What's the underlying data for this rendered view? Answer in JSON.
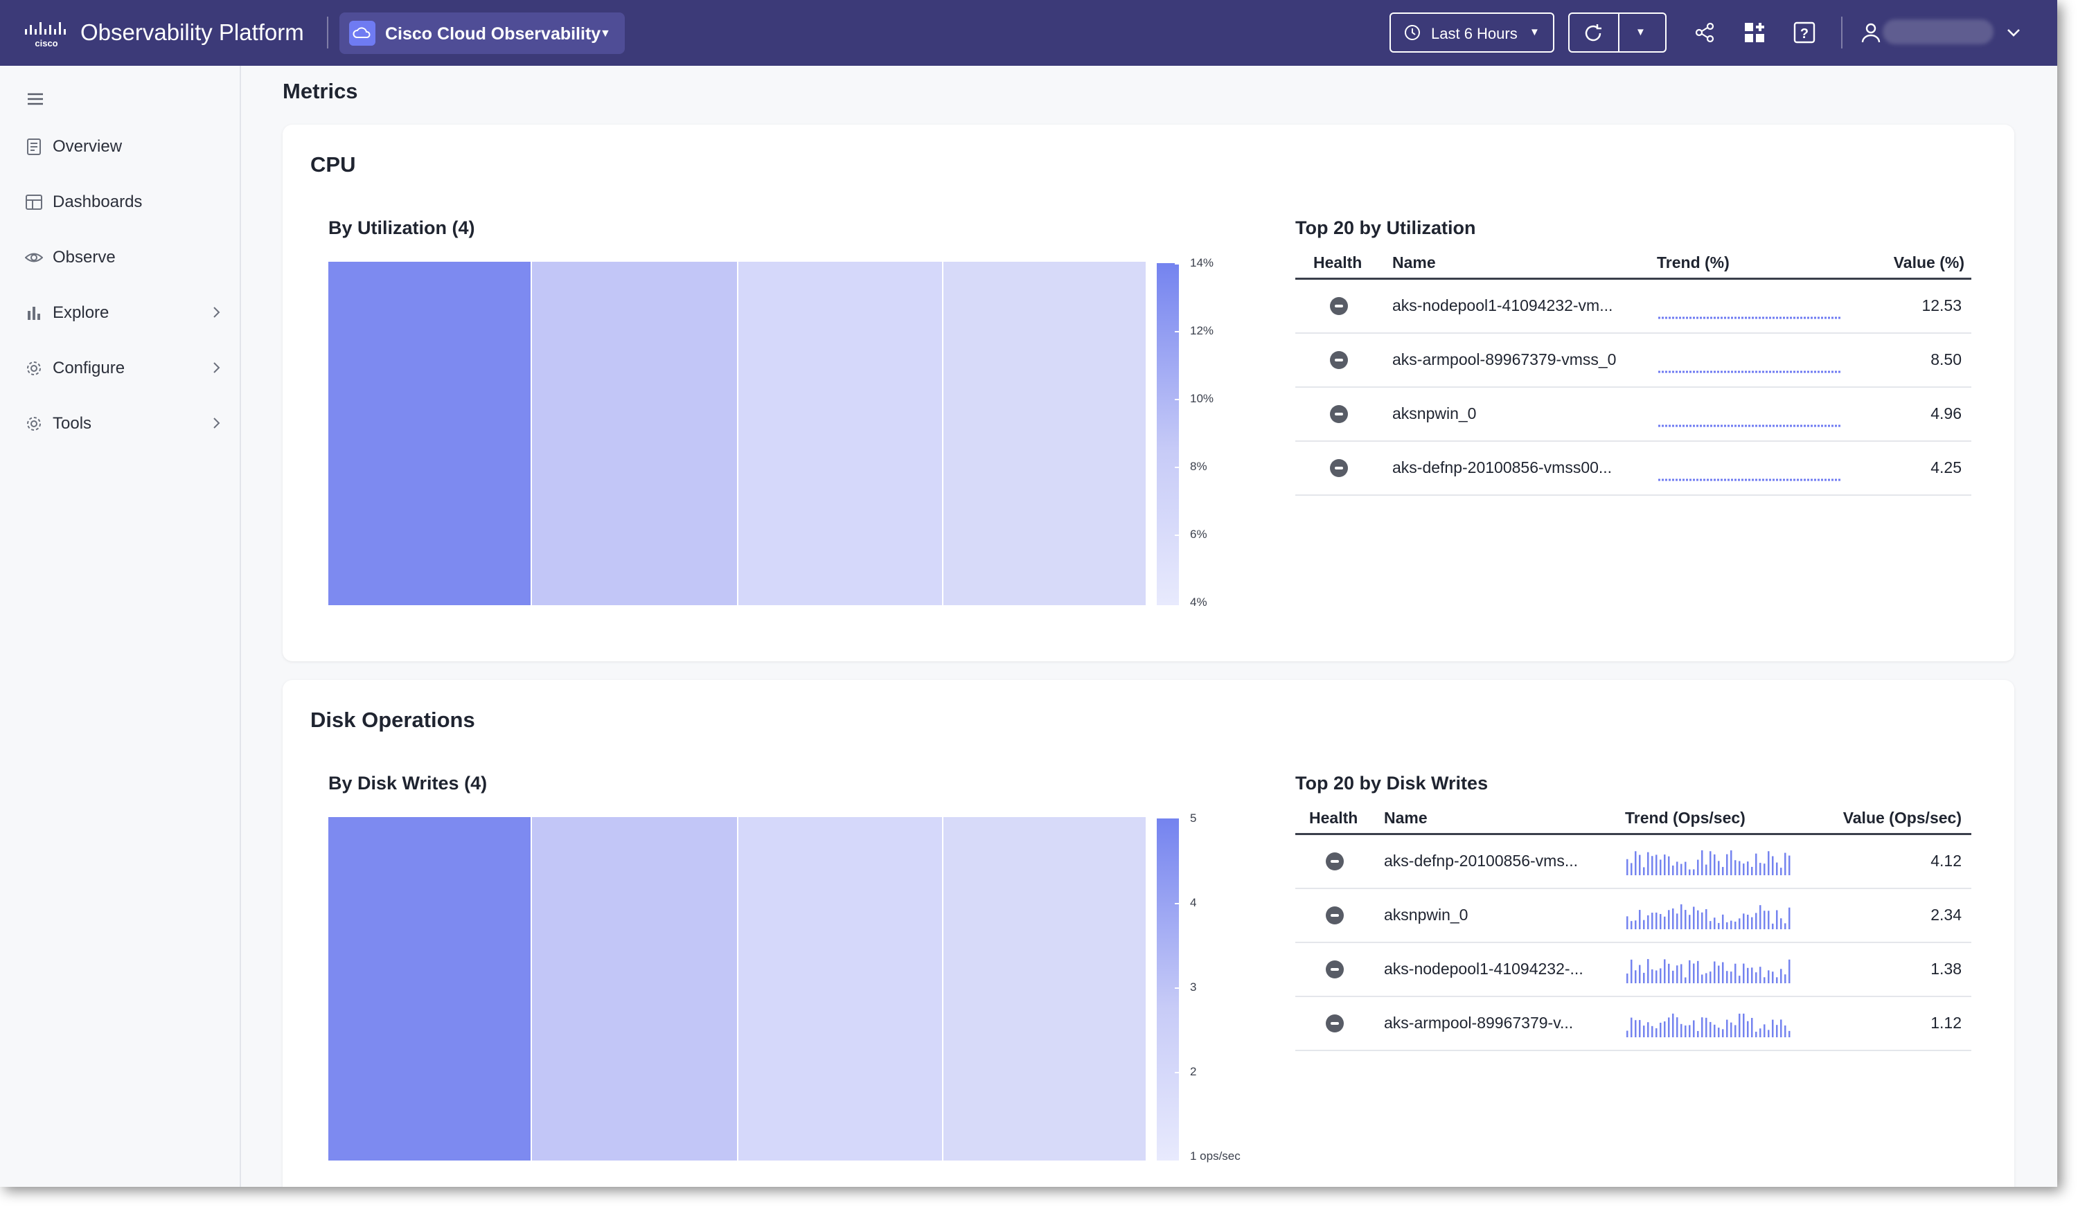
{
  "header": {
    "app_title": "Observability Platform",
    "product": "Cisco Cloud Observability",
    "time_range": "Last 6 Hours",
    "bg_color": "#3c3a78",
    "icons": [
      "cisco-logo",
      "cloud-icon",
      "clock-icon",
      "refresh-icon",
      "share-icon",
      "add-widget-icon",
      "help-icon",
      "user-icon"
    ]
  },
  "sidebar": {
    "items": [
      {
        "label": "Overview",
        "icon": "overview-icon",
        "has_chevron": false
      },
      {
        "label": "Dashboards",
        "icon": "dashboards-icon",
        "has_chevron": false
      },
      {
        "label": "Observe",
        "icon": "eye-icon",
        "has_chevron": false
      },
      {
        "label": "Explore",
        "icon": "bar-chart-icon",
        "has_chevron": true
      },
      {
        "label": "Configure",
        "icon": "gear-icon",
        "has_chevron": true
      },
      {
        "label": "Tools",
        "icon": "gear-icon",
        "has_chevron": true
      }
    ]
  },
  "page": {
    "title": "Metrics"
  },
  "cpu": {
    "title": "CPU",
    "treemap_title": "By Utilization (4)",
    "scale_labels": [
      "14%",
      "12%",
      "10%",
      "8%",
      "6%",
      "4%"
    ],
    "table_title": "Top 20 by Utilization",
    "columns": [
      "Health",
      "Name",
      "Trend (%)",
      "Value (%)"
    ],
    "rows": [
      {
        "name": "aks-nodepool1-41094232-vm...",
        "value": "12.53"
      },
      {
        "name": "aks-armpool-89967379-vmss_0",
        "value": "8.50"
      },
      {
        "name": "aksnpwin_0",
        "value": "4.96"
      },
      {
        "name": "aks-defnp-20100856-vmss00...",
        "value": "4.25"
      }
    ]
  },
  "disk": {
    "title": "Disk Operations",
    "treemap_title": "By Disk Writes (4)",
    "scale_labels": [
      "5",
      "4",
      "3",
      "2",
      "1 ops/sec"
    ],
    "table_title": "Top 20 by Disk Writes",
    "columns": [
      "Health",
      "Name",
      "Trend (Ops/sec)",
      "Value (Ops/sec)"
    ],
    "rows": [
      {
        "name": "aks-defnp-20100856-vms...",
        "value": "4.12"
      },
      {
        "name": "aksnpwin_0",
        "value": "2.34"
      },
      {
        "name": "aks-nodepool1-41094232-...",
        "value": "1.38"
      },
      {
        "name": "aks-armpool-89967379-v...",
        "value": "1.12"
      }
    ]
  },
  "colors": {
    "accent": "#7483ef",
    "tile_1": "#7d8af0",
    "tile_2": "#c2c6f7",
    "tile_3": "#d5d8fa",
    "tile_4": "#d7daf9"
  }
}
